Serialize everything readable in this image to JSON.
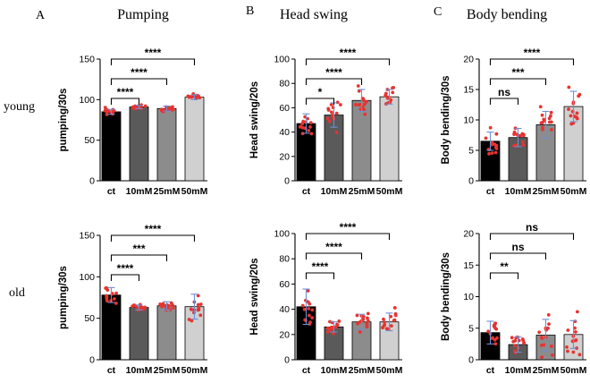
{
  "figure": {
    "columns": [
      {
        "letter": "A",
        "title": "Pumping"
      },
      {
        "letter": "B",
        "title": "Head swing"
      },
      {
        "letter": "C",
        "title": "Body bending"
      }
    ],
    "rows": [
      {
        "label": "young"
      },
      {
        "label": "old"
      }
    ]
  },
  "colors": {
    "bar_fills": [
      "#000000",
      "#5a5a5a",
      "#8c8c8c",
      "#d0d0d0"
    ],
    "point": "#e8332f",
    "error_bar": "#6c8fd6"
  },
  "chart_data": [
    {
      "type": "bar",
      "panel": "A-young",
      "categories": [
        "ct",
        "10mM",
        "25mM",
        "50mM"
      ],
      "values": [
        85,
        91,
        89,
        103
      ],
      "errors": [
        3,
        2,
        3,
        3
      ],
      "ylabel": "pumping/30s",
      "ylim": [
        0,
        150
      ],
      "yticks": [
        0,
        50,
        100,
        150
      ],
      "comparisons": [
        {
          "from": 0,
          "to": 1,
          "label": "****"
        },
        {
          "from": 0,
          "to": 2,
          "label": "****"
        },
        {
          "from": 0,
          "to": 3,
          "label": "****"
        }
      ]
    },
    {
      "type": "bar",
      "panel": "B-young",
      "categories": [
        "ct",
        "10mM",
        "25mM",
        "50mM"
      ],
      "values": [
        47,
        54,
        66,
        69
      ],
      "errors": [
        8,
        10,
        9,
        6
      ],
      "ylabel": "Head swing/20s",
      "ylim": [
        0,
        100
      ],
      "yticks": [
        0,
        20,
        40,
        60,
        80,
        100
      ],
      "comparisons": [
        {
          "from": 0,
          "to": 1,
          "label": "*"
        },
        {
          "from": 0,
          "to": 2,
          "label": "****"
        },
        {
          "from": 0,
          "to": 3,
          "label": "****"
        }
      ]
    },
    {
      "type": "bar",
      "panel": "C-young",
      "categories": [
        "ct",
        "10mM",
        "25mM",
        "50mM"
      ],
      "values": [
        6.5,
        7.1,
        9.2,
        12.2
      ],
      "errors": [
        1.5,
        1.5,
        2.2,
        2.5
      ],
      "ylabel": "Body bending/30s",
      "ylim": [
        0,
        20
      ],
      "yticks": [
        0,
        5,
        10,
        15,
        20
      ],
      "comparisons": [
        {
          "from": 0,
          "to": 1,
          "label": "ns"
        },
        {
          "from": 0,
          "to": 2,
          "label": "***"
        },
        {
          "from": 0,
          "to": 3,
          "label": "****"
        }
      ]
    },
    {
      "type": "bar",
      "panel": "A-old",
      "categories": [
        "ct",
        "10mM",
        "25mM",
        "50mM"
      ],
      "values": [
        78,
        63,
        65,
        64
      ],
      "errors": [
        9,
        3,
        5,
        15
      ],
      "ylabel": "pumping/30s",
      "ylim": [
        0,
        150
      ],
      "yticks": [
        0,
        50,
        100,
        150
      ],
      "comparisons": [
        {
          "from": 0,
          "to": 1,
          "label": "****"
        },
        {
          "from": 0,
          "to": 2,
          "label": "***"
        },
        {
          "from": 0,
          "to": 3,
          "label": "****"
        }
      ]
    },
    {
      "type": "bar",
      "panel": "B-old",
      "categories": [
        "ct",
        "10mM",
        "25mM",
        "50mM"
      ],
      "values": [
        42,
        26,
        30,
        30
      ],
      "errors": [
        14,
        4,
        6,
        7
      ],
      "ylabel": "Head swing/20s",
      "ylim": [
        0,
        100
      ],
      "yticks": [
        0,
        20,
        40,
        60,
        80,
        100
      ],
      "comparisons": [
        {
          "from": 0,
          "to": 1,
          "label": "****"
        },
        {
          "from": 0,
          "to": 2,
          "label": "****"
        },
        {
          "from": 0,
          "to": 3,
          "label": "****"
        }
      ]
    },
    {
      "type": "bar",
      "panel": "C-old",
      "categories": [
        "ct",
        "10mM",
        "25mM",
        "50mM"
      ],
      "values": [
        4.3,
        2.4,
        3.9,
        4.0
      ],
      "errors": [
        1.8,
        1.2,
        2.5,
        2.2
      ],
      "ylabel": "Body bending/30s",
      "ylim": [
        0,
        20
      ],
      "yticks": [
        0,
        5,
        10,
        15,
        20
      ],
      "comparisons": [
        {
          "from": 0,
          "to": 1,
          "label": "**"
        },
        {
          "from": 0,
          "to": 2,
          "label": "ns"
        },
        {
          "from": 0,
          "to": 3,
          "label": "ns"
        }
      ]
    }
  ]
}
